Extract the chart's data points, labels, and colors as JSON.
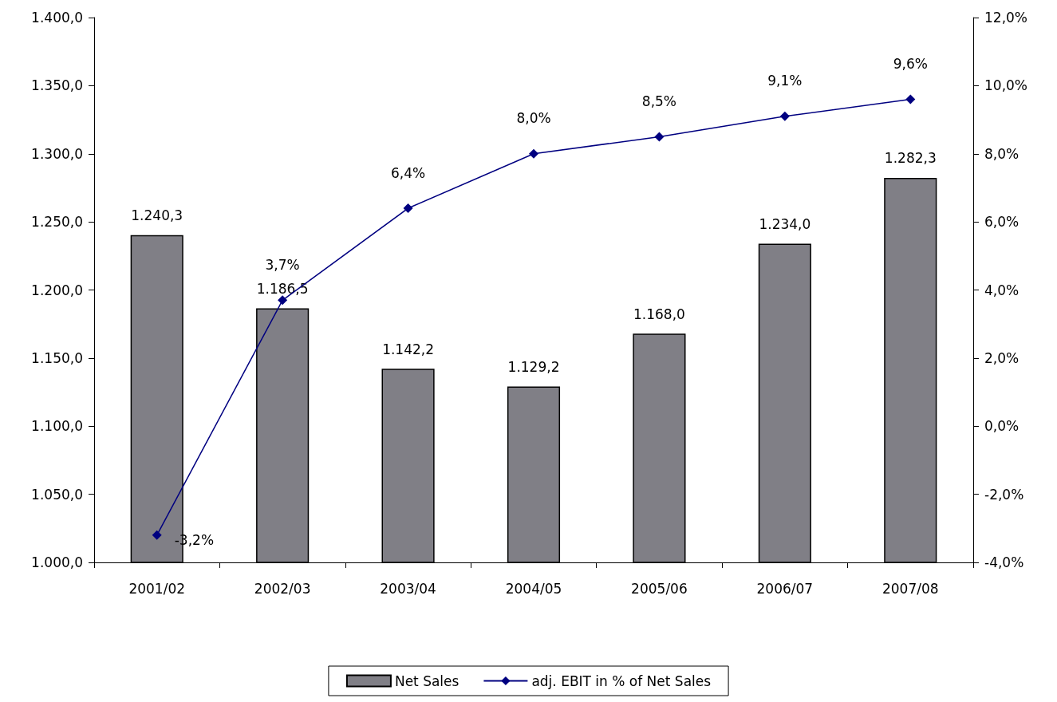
{
  "chart_data": {
    "type": "bar",
    "categories": [
      "2001/02",
      "2002/03",
      "2003/04",
      "2004/05",
      "2005/06",
      "2006/07",
      "2007/08"
    ],
    "series": [
      {
        "name": "Net Sales",
        "color": "#807f86",
        "values": [
          1240.3,
          1186.5,
          1142.2,
          1129.2,
          1168.0,
          1234.0,
          1282.3
        ],
        "value_labels": [
          "1.240,3",
          "1.186,5",
          "1.142,2",
          "1.129,2",
          "1.168,0",
          "1.234,0",
          "1.282,3"
        ]
      },
      {
        "name": "adj. EBIT in % of Net Sales",
        "type": "line",
        "axis": "y2",
        "color": "#000080",
        "marker": "diamond",
        "values": [
          -3.2,
          3.7,
          6.4,
          8.0,
          8.5,
          9.1,
          9.6
        ],
        "value_labels": [
          "-3,2%",
          "3,7%",
          "6,4%",
          "8,0%",
          "8,5%",
          "9,1%",
          "9,6%"
        ]
      }
    ],
    "ylim": [
      1000,
      1400
    ],
    "yticks": [
      {
        "value": 1000,
        "label": "1.000,0"
      },
      {
        "value": 1050,
        "label": "1.050,0"
      },
      {
        "value": 1100,
        "label": "1.100,0"
      },
      {
        "value": 1150,
        "label": "1.150,0"
      },
      {
        "value": 1200,
        "label": "1.200,0"
      },
      {
        "value": 1250,
        "label": "1.250,0"
      },
      {
        "value": 1300,
        "label": "1.300,0"
      },
      {
        "value": 1350,
        "label": "1.350,0"
      },
      {
        "value": 1400,
        "label": "1.400,0"
      }
    ],
    "y2lim": [
      -4,
      12
    ],
    "y2ticks": [
      {
        "value": -4,
        "label": "-4,0%"
      },
      {
        "value": -2,
        "label": "-2,0%"
      },
      {
        "value": 0,
        "label": "0,0%"
      },
      {
        "value": 2,
        "label": "2,0%"
      },
      {
        "value": 4,
        "label": "4,0%"
      },
      {
        "value": 6,
        "label": "6,0%"
      },
      {
        "value": 8,
        "label": "8,0%"
      },
      {
        "value": 10,
        "label": "10,0%"
      },
      {
        "value": 12,
        "label": "12,0%"
      }
    ],
    "grid": false,
    "legend": "bottom"
  }
}
